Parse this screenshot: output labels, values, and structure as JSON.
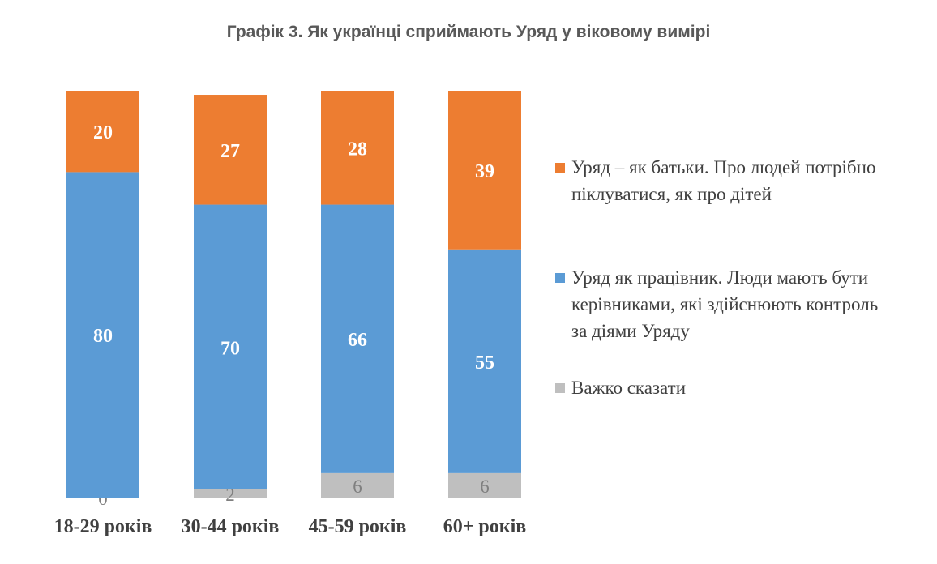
{
  "chart_data": {
    "type": "bar",
    "stacked": true,
    "title": "Графік 3. Як українці сприймають Уряд у віковому вимірі",
    "categories": [
      "18-29 років",
      "30-44 років",
      "45-59 років",
      "60+ років"
    ],
    "series": [
      {
        "name": "Важко сказати",
        "values": [
          0,
          2,
          6,
          6
        ],
        "color": "#bfbfbf",
        "label_color": "#7f7f7f"
      },
      {
        "name": "Уряд як працівник. Люди мають бути керівниками, які здійснюють контроль за діями Уряду",
        "values": [
          80,
          70,
          66,
          55
        ],
        "color": "#5b9bd5",
        "label_color": "#ffffff"
      },
      {
        "name": "Уряд – як батьки. Про людей потрібно піклуватися, як про дітей",
        "values": [
          20,
          27,
          28,
          39
        ],
        "color": "#ed7d31",
        "label_color": "#ffffff"
      }
    ],
    "ylim": [
      0,
      100
    ],
    "xlabel": "",
    "ylabel": "",
    "grid": false,
    "legend_position": "right"
  },
  "legend": [
    {
      "label": "Уряд – як батьки. Про людей потрібно піклуватися, як про дітей",
      "color": "#ed7d31"
    },
    {
      "label": "Уряд як працівник. Люди мають бути керівниками, які здійснюють контроль за діями Уряду",
      "color": "#5b9bd5"
    },
    {
      "label": "Важко сказати",
      "color": "#bfbfbf"
    }
  ]
}
